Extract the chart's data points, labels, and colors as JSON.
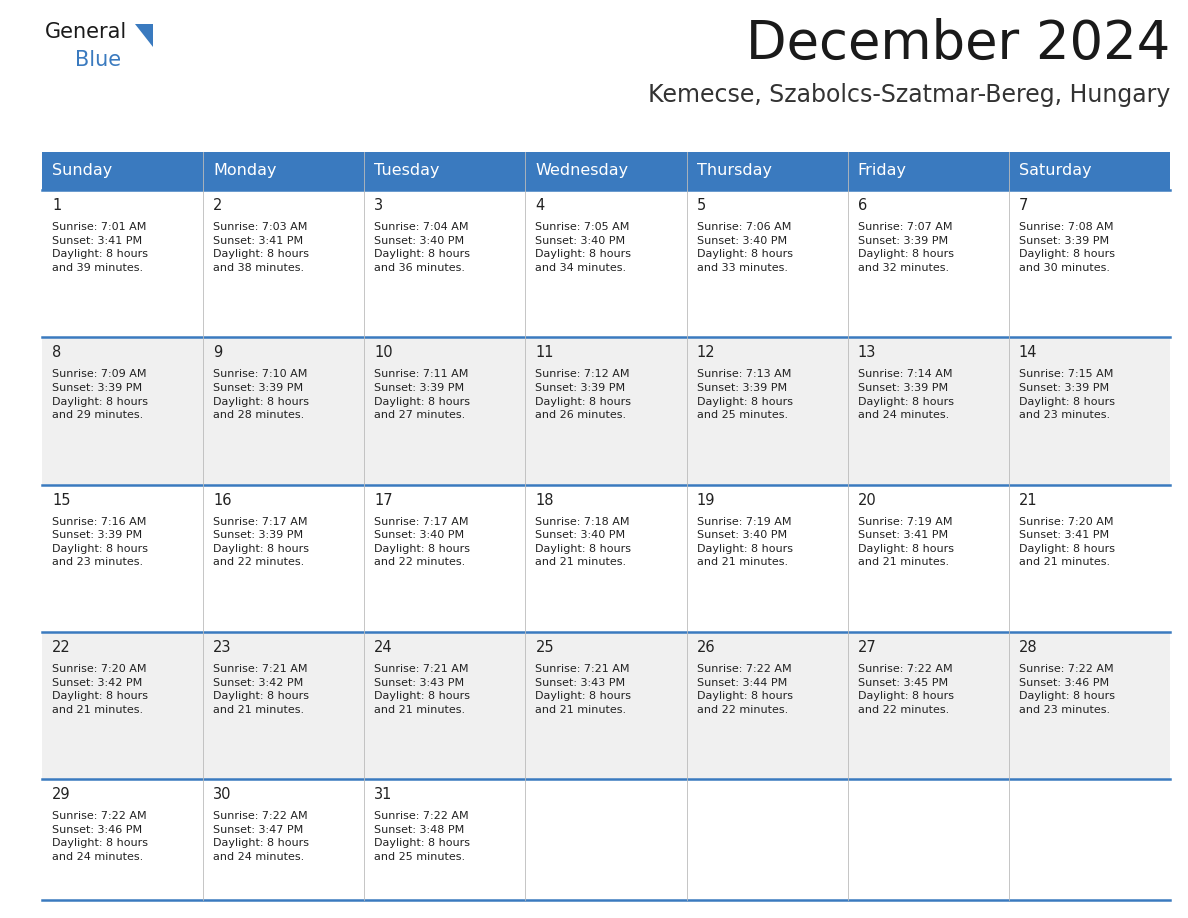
{
  "title": "December 2024",
  "subtitle": "Kemecse, Szabolcs-Szatmar-Bereg, Hungary",
  "header_color": "#3a7abf",
  "header_text_color": "#ffffff",
  "cell_bg_white": "#ffffff",
  "cell_bg_gray": "#f0f0f0",
  "text_color": "#222222",
  "border_color": "#3a7abf",
  "days_of_week": [
    "Sunday",
    "Monday",
    "Tuesday",
    "Wednesday",
    "Thursday",
    "Friday",
    "Saturday"
  ],
  "weeks": [
    [
      {
        "day": 1,
        "sunrise": "7:01 AM",
        "sunset": "3:41 PM",
        "daylight": "8 hours\nand 39 minutes."
      },
      {
        "day": 2,
        "sunrise": "7:03 AM",
        "sunset": "3:41 PM",
        "daylight": "8 hours\nand 38 minutes."
      },
      {
        "day": 3,
        "sunrise": "7:04 AM",
        "sunset": "3:40 PM",
        "daylight": "8 hours\nand 36 minutes."
      },
      {
        "day": 4,
        "sunrise": "7:05 AM",
        "sunset": "3:40 PM",
        "daylight": "8 hours\nand 34 minutes."
      },
      {
        "day": 5,
        "sunrise": "7:06 AM",
        "sunset": "3:40 PM",
        "daylight": "8 hours\nand 33 minutes."
      },
      {
        "day": 6,
        "sunrise": "7:07 AM",
        "sunset": "3:39 PM",
        "daylight": "8 hours\nand 32 minutes."
      },
      {
        "day": 7,
        "sunrise": "7:08 AM",
        "sunset": "3:39 PM",
        "daylight": "8 hours\nand 30 minutes."
      }
    ],
    [
      {
        "day": 8,
        "sunrise": "7:09 AM",
        "sunset": "3:39 PM",
        "daylight": "8 hours\nand 29 minutes."
      },
      {
        "day": 9,
        "sunrise": "7:10 AM",
        "sunset": "3:39 PM",
        "daylight": "8 hours\nand 28 minutes."
      },
      {
        "day": 10,
        "sunrise": "7:11 AM",
        "sunset": "3:39 PM",
        "daylight": "8 hours\nand 27 minutes."
      },
      {
        "day": 11,
        "sunrise": "7:12 AM",
        "sunset": "3:39 PM",
        "daylight": "8 hours\nand 26 minutes."
      },
      {
        "day": 12,
        "sunrise": "7:13 AM",
        "sunset": "3:39 PM",
        "daylight": "8 hours\nand 25 minutes."
      },
      {
        "day": 13,
        "sunrise": "7:14 AM",
        "sunset": "3:39 PM",
        "daylight": "8 hours\nand 24 minutes."
      },
      {
        "day": 14,
        "sunrise": "7:15 AM",
        "sunset": "3:39 PM",
        "daylight": "8 hours\nand 23 minutes."
      }
    ],
    [
      {
        "day": 15,
        "sunrise": "7:16 AM",
        "sunset": "3:39 PM",
        "daylight": "8 hours\nand 23 minutes."
      },
      {
        "day": 16,
        "sunrise": "7:17 AM",
        "sunset": "3:39 PM",
        "daylight": "8 hours\nand 22 minutes."
      },
      {
        "day": 17,
        "sunrise": "7:17 AM",
        "sunset": "3:40 PM",
        "daylight": "8 hours\nand 22 minutes."
      },
      {
        "day": 18,
        "sunrise": "7:18 AM",
        "sunset": "3:40 PM",
        "daylight": "8 hours\nand 21 minutes."
      },
      {
        "day": 19,
        "sunrise": "7:19 AM",
        "sunset": "3:40 PM",
        "daylight": "8 hours\nand 21 minutes."
      },
      {
        "day": 20,
        "sunrise": "7:19 AM",
        "sunset": "3:41 PM",
        "daylight": "8 hours\nand 21 minutes."
      },
      {
        "day": 21,
        "sunrise": "7:20 AM",
        "sunset": "3:41 PM",
        "daylight": "8 hours\nand 21 minutes."
      }
    ],
    [
      {
        "day": 22,
        "sunrise": "7:20 AM",
        "sunset": "3:42 PM",
        "daylight": "8 hours\nand 21 minutes."
      },
      {
        "day": 23,
        "sunrise": "7:21 AM",
        "sunset": "3:42 PM",
        "daylight": "8 hours\nand 21 minutes."
      },
      {
        "day": 24,
        "sunrise": "7:21 AM",
        "sunset": "3:43 PM",
        "daylight": "8 hours\nand 21 minutes."
      },
      {
        "day": 25,
        "sunrise": "7:21 AM",
        "sunset": "3:43 PM",
        "daylight": "8 hours\nand 21 minutes."
      },
      {
        "day": 26,
        "sunrise": "7:22 AM",
        "sunset": "3:44 PM",
        "daylight": "8 hours\nand 22 minutes."
      },
      {
        "day": 27,
        "sunrise": "7:22 AM",
        "sunset": "3:45 PM",
        "daylight": "8 hours\nand 22 minutes."
      },
      {
        "day": 28,
        "sunrise": "7:22 AM",
        "sunset": "3:46 PM",
        "daylight": "8 hours\nand 23 minutes."
      }
    ],
    [
      {
        "day": 29,
        "sunrise": "7:22 AM",
        "sunset": "3:46 PM",
        "daylight": "8 hours\nand 24 minutes."
      },
      {
        "day": 30,
        "sunrise": "7:22 AM",
        "sunset": "3:47 PM",
        "daylight": "8 hours\nand 24 minutes."
      },
      {
        "day": 31,
        "sunrise": "7:22 AM",
        "sunset": "3:48 PM",
        "daylight": "8 hours\nand 25 minutes."
      },
      null,
      null,
      null,
      null
    ]
  ],
  "title_fontsize": 38,
  "subtitle_fontsize": 17,
  "header_fontsize": 11.5,
  "day_num_fontsize": 10.5,
  "cell_text_fontsize": 8.0,
  "logo_general_fontsize": 15,
  "logo_blue_fontsize": 15
}
